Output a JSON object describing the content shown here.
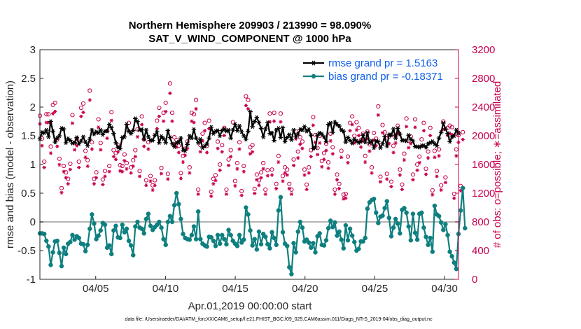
{
  "chart_data": {
    "type": "line",
    "title": "Northern Hemisphere 209903 / 213990 = 98.090%",
    "subtitle": "SAT_V_WIND_COMPONENT @ 1000 hPa",
    "xlabel": "Apr.01,2019 00:00:00 start",
    "ylabel": "rmse and bias (model - observation)",
    "ylabel_right": "# of obs: o=possible; ∗=assimilated",
    "footer": "data file: /Users/raeder/DAI/ATM_forcXX/CAM6_setup/f.e21.FHIST_BGC.f09_025.CAM6assim.011/Diags_NTrS_2019-04/obs_diag_output.nc",
    "xlim": [
      1.0,
      31.0
    ],
    "ylim": [
      -1,
      3
    ],
    "ylim_right": [
      0,
      3200
    ],
    "x_ticks": [
      5,
      10,
      15,
      20,
      25,
      30
    ],
    "x_tick_labels": [
      "04/05",
      "04/10",
      "04/15",
      "04/20",
      "04/25",
      "04/30"
    ],
    "y_ticks": [
      "-1",
      "-0.5",
      "0",
      "0.5",
      "1",
      "1.5",
      "2",
      "2.5",
      "3"
    ],
    "y_ticks_right": [
      "0",
      "400",
      "800",
      "1200",
      "1600",
      "2000",
      "2400",
      "2800",
      "3200"
    ],
    "colors": {
      "rmse": "#000000",
      "bias": "#0e7f7f",
      "obs": "#c8004e",
      "legend_text": "#1060e8",
      "zero_line": "#b4b4b4"
    },
    "series": [
      {
        "name": "rmse grand pr = 1.5163",
        "marker": "asterisk",
        "values": [
          1.45,
          1.56,
          1.55,
          1.6,
          1.48,
          1.75,
          1.58,
          1.39,
          1.46,
          1.5,
          1.63,
          1.62,
          1.38,
          1.45,
          1.42,
          1.37,
          1.38,
          1.47,
          1.36,
          1.41,
          1.48,
          1.39,
          1.33,
          1.44,
          1.6,
          1.53,
          1.57,
          1.55,
          1.6,
          1.52,
          1.58,
          1.58,
          1.7,
          1.64,
          1.54,
          1.38,
          1.3,
          1.28,
          1.47,
          1.48,
          1.7,
          1.58,
          1.54,
          1.59,
          1.8,
          1.75,
          1.6,
          1.61,
          1.44,
          1.6,
          1.48,
          1.42,
          1.42,
          1.51,
          1.57,
          1.38,
          1.49,
          1.45,
          1.38,
          1.59,
          1.47,
          1.36,
          1.31,
          1.38,
          1.39,
          1.46,
          1.25,
          1.24,
          1.35,
          1.5,
          1.46,
          1.61,
          1.46,
          1.38,
          1.44,
          1.29,
          1.32,
          1.36,
          1.46,
          1.65,
          1.54,
          1.58,
          1.59,
          1.5,
          1.59,
          1.62,
          1.58,
          1.6,
          1.46,
          1.6,
          1.7,
          1.59,
          1.67,
          1.57,
          1.5,
          1.44,
          1.58,
          1.92,
          1.66,
          1.75,
          1.82,
          1.73,
          1.63,
          1.48,
          1.62,
          1.73,
          1.54,
          1.55,
          1.42,
          1.6,
          1.63,
          1.47,
          1.64,
          1.4,
          1.47,
          1.52,
          1.43,
          1.6,
          1.48,
          1.53,
          1.61,
          1.6,
          1.66,
          1.58,
          1.61,
          1.51,
          1.28,
          1.29,
          1.51,
          1.55,
          1.53,
          1.48,
          1.4,
          1.7,
          1.72,
          1.56,
          1.74,
          1.7,
          1.67,
          1.6,
          1.58,
          1.39,
          1.47,
          1.42,
          1.37,
          1.44,
          1.41,
          1.38,
          1.4,
          1.51,
          1.39,
          1.55,
          1.38,
          1.41,
          1.29,
          1.41,
          1.4,
          1.29,
          1.36,
          1.49,
          1.32,
          1.52,
          1.51,
          1.62,
          1.46,
          1.63,
          1.53,
          1.42,
          1.42,
          1.41,
          1.51,
          1.44,
          1.41,
          1.31,
          1.31,
          1.3,
          1.33,
          1.33,
          1.3,
          1.36,
          1.38,
          1.4,
          1.36,
          1.33,
          1.46,
          1.56,
          1.72,
          1.62,
          1.54,
          1.4,
          1.48,
          1.5,
          1.6,
          1.55
        ]
      },
      {
        "name": "bias grand pr = -0.18371",
        "marker": "dot",
        "values": [
          -0.2,
          -0.2,
          -0.21,
          -0.33,
          -0.43,
          -0.75,
          -0.53,
          -0.34,
          -0.33,
          -0.54,
          -0.77,
          -0.45,
          -0.56,
          -0.38,
          -0.35,
          -0.23,
          -0.31,
          -0.25,
          -0.28,
          -0.38,
          -0.39,
          -0.51,
          -0.4,
          -0.12,
          0.13,
          -0.03,
          -0.3,
          -0.24,
          -0.15,
          -0.02,
          -0.05,
          -0.45,
          -0.41,
          -0.56,
          -0.15,
          -0.07,
          -0.27,
          -0.28,
          -0.05,
          -0.18,
          -0.12,
          -0.33,
          -0.41,
          -0.58,
          -0.08,
          0.0,
          -0.1,
          -0.12,
          -0.2,
          0.05,
          0.14,
          -0.07,
          -0.14,
          -0.09,
          -0.05,
          0.0,
          -0.1,
          -0.3,
          -0.4,
          0.0,
          0.1,
          0.0,
          0.29,
          0.5,
          0.31,
          0.05,
          -0.21,
          -0.28,
          -0.3,
          -0.31,
          -0.23,
          -0.08,
          -0.3,
          0.18,
          -0.3,
          -0.38,
          -0.41,
          -0.43,
          -0.26,
          -0.27,
          -0.33,
          -0.42,
          -0.23,
          -0.38,
          -0.23,
          -0.3,
          -0.39,
          -0.14,
          -0.23,
          -0.33,
          -0.38,
          -0.42,
          -0.23,
          -0.36,
          -0.31,
          0.25,
          0.13,
          -0.15,
          -0.41,
          -0.3,
          -0.48,
          -0.17,
          -0.39,
          -0.21,
          -0.26,
          -0.39,
          -0.46,
          -0.18,
          -0.28,
          -0.4,
          0.2,
          0.43,
          -0.18,
          -0.38,
          -0.42,
          -0.79,
          -0.91,
          -0.37,
          -0.53,
          -0.17,
          0.0,
          -0.1,
          -0.34,
          -0.31,
          -0.36,
          -0.45,
          -0.37,
          -0.53,
          -0.25,
          -0.2,
          -0.4,
          -0.41,
          -0.32,
          -0.11,
          0.02,
          -0.09,
          -0.01,
          -0.24,
          -0.17,
          -0.31,
          -0.46,
          -0.06,
          -0.32,
          -0.12,
          -0.24,
          -0.35,
          -0.5,
          -0.47,
          -0.34,
          -0.34,
          -0.28,
          0.23,
          0.34,
          0.38,
          0.4,
          0.16,
          -0.02,
          0.09,
          0.11,
          0.24,
          0.36,
          0.07,
          -0.25,
          -0.1,
          0.05,
          -0.03,
          -0.2,
          0.21,
          0.24,
          0.16,
          -0.08,
          -0.32,
          0.14,
          -0.19,
          -0.31,
          0.14,
          0.16,
          -0.1,
          -0.26,
          -0.4,
          -0.28,
          -0.52,
          0.28,
          0.13,
          0.1,
          -0.01,
          -0.14,
          -0.04,
          -0.23,
          -0.52,
          -0.6,
          -0.71,
          -0.82,
          -0.21,
          0.2,
          0.59,
          -0.11
        ]
      }
    ],
    "obs_possible": [
      2280,
      1960,
      1640,
      2300,
      2300,
      1850,
      2430,
      2460,
      1950,
      1680,
      1270,
      1580,
      1490,
      1400,
      1610,
      2290,
      1900,
      1960,
      1640,
      2390,
      2450,
      1790,
      1660,
      2630,
      1910,
      1400,
      1490,
      2230,
      1900,
      1390,
      1510,
      2070,
      1580,
      2330,
      1800,
      1760,
      1870,
      1590,
      1580,
      1740,
      1620,
      2180,
      1560,
      1660,
      1800,
      2090,
      1510,
      2270,
      1950,
      1380,
      1910,
      1440,
      1310,
      1380,
      2210,
      2390,
      1550,
      2320,
      2460,
      1470,
      2730,
      2320,
      1980,
      1940,
      1860,
      1480,
      1720,
      1820,
      1920,
      1560,
      2320,
      2300,
      2500,
      1250,
      1870,
      2030,
      2180,
      1860,
      2210,
      1220,
      1400,
      1450,
      1920,
      1600,
      1870,
      2110,
      1250,
      1670,
      1800,
      2190,
      1370,
      1620,
      1910,
      1230,
      1580,
      2550,
      2500,
      1840,
      1870,
      1260,
      1460,
      1380,
      1490,
      1620,
      1250,
      1520,
      2310,
      1530,
      2320,
      1330,
      1720,
      2310,
      1440,
      1560,
      1530,
      1330,
      1250,
      1670,
      2060,
      1780,
      1980,
      1920,
      1530,
      1320,
      1560,
      1800,
      2260,
      2010,
      1830,
      2000,
      1650,
      1760,
      1890,
      1630,
      2030,
      1840,
      1250,
      1460,
      1330,
      1790,
      1180,
      1190,
      1710,
      2180,
      2270,
      2000,
      2190,
      2110,
      1940,
      2030,
      1720,
      2060,
      1880,
      1560,
      2040,
      1960,
      2410,
      1430,
      2150,
      2050,
      1470,
      1990,
      1360,
      1860,
      2000,
      2140,
      1530,
      1320,
      1750,
      2240,
      1930,
      1990,
      1460,
      2230,
      1600,
      1710,
      1950,
      2180,
      1540,
      1780,
      2110,
      1240,
      1790,
      1510,
      1810,
      1310,
      2200,
      1420,
      2110,
      2140,
      2120,
      1190,
      1810,
      2010,
      1300,
      2050
    ]
  }
}
